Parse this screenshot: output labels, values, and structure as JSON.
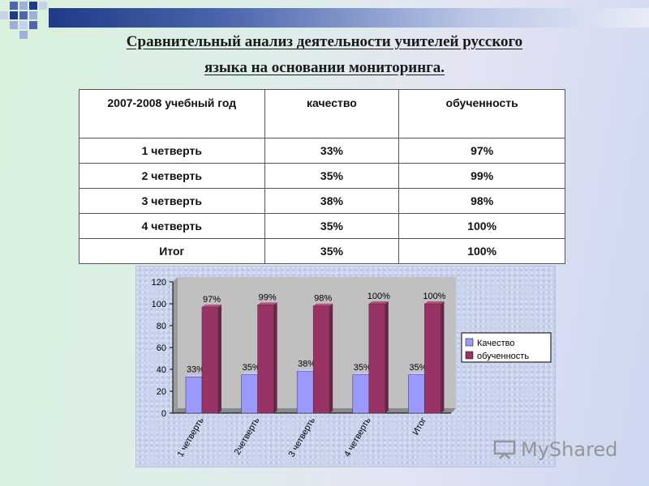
{
  "title_line1": "Сравнительный анализ деятельности учителей русского",
  "title_line2": "языка  на основании мониторинга.",
  "table": {
    "headers": [
      "2007-2008 учебный год",
      "качество",
      "обученность"
    ],
    "rows": [
      [
        "1 четверть",
        "33%",
        "97%"
      ],
      [
        "2 четверть",
        "35%",
        "99%"
      ],
      [
        "3 четверть",
        "38%",
        "98%"
      ],
      [
        "4 четверть",
        "35%",
        "100%"
      ],
      [
        "Итог",
        "35%",
        "100%"
      ]
    ]
  },
  "chart_data": {
    "type": "bar",
    "categories": [
      "1 четверть",
      "2четверть",
      "3 четверть",
      "4 четверть",
      "Итог"
    ],
    "series": [
      {
        "name": "Качество",
        "values": [
          33,
          35,
          38,
          35,
          35
        ],
        "labels": [
          "33%",
          "35%",
          "38%",
          "35%",
          "35%"
        ],
        "color": "#9999ff"
      },
      {
        "name": "обученность",
        "values": [
          97,
          99,
          98,
          100,
          100
        ],
        "labels": [
          "97%",
          "99%",
          "98%",
          "100%",
          "100%"
        ],
        "color": "#993366"
      }
    ],
    "ylim": [
      0,
      120
    ],
    "yticks": [
      0,
      20,
      40,
      60,
      80,
      100,
      120
    ],
    "grid": false,
    "legend": "right",
    "plot_background": "#c0c0c0"
  },
  "watermark": {
    "text": "MyShared",
    "icon": "presentation-board-icon"
  }
}
